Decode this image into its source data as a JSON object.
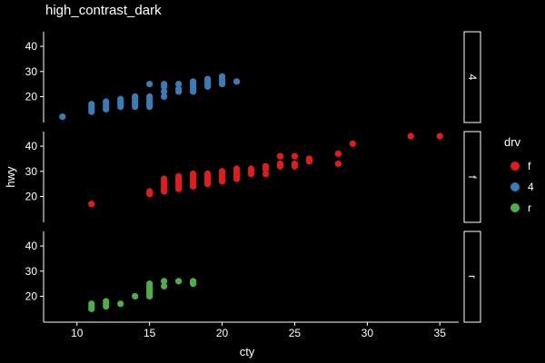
{
  "colors": {
    "background": "#000000",
    "foreground": "#ffffff",
    "f": "#e41a1c",
    "4": "#377eb8",
    "r": "#4daf4a"
  },
  "chart_data": {
    "type": "scatter",
    "title": "high_contrast_dark",
    "xlabel": "cty",
    "ylabel": "hwy",
    "xlim": [
      7.7,
      36.3
    ],
    "ylim": [
      9.7,
      45.8
    ],
    "x_ticks": [
      10,
      15,
      20,
      25,
      30,
      35
    ],
    "y_ticks": [
      20,
      30,
      40
    ],
    "grid": false,
    "facet_by": "drv",
    "legend": {
      "title": "drv",
      "placement": "right",
      "entries": [
        "f",
        "4",
        "r"
      ]
    },
    "series": [
      {
        "name": "4",
        "facet": "4",
        "points": [
          [
            9,
            12
          ],
          [
            11,
            14
          ],
          [
            11,
            15
          ],
          [
            11,
            16
          ],
          [
            11,
            17
          ],
          [
            12,
            15
          ],
          [
            12,
            16
          ],
          [
            12,
            17
          ],
          [
            12,
            18
          ],
          [
            13,
            16
          ],
          [
            13,
            17
          ],
          [
            13,
            18
          ],
          [
            13,
            19
          ],
          [
            14,
            16
          ],
          [
            14,
            17
          ],
          [
            14,
            18
          ],
          [
            14,
            19
          ],
          [
            14,
            20
          ],
          [
            15,
            16
          ],
          [
            15,
            17
          ],
          [
            15,
            18
          ],
          [
            15,
            19
          ],
          [
            15,
            20
          ],
          [
            15,
            25
          ],
          [
            16,
            20
          ],
          [
            16,
            22
          ],
          [
            16,
            24
          ],
          [
            16,
            25
          ],
          [
            17,
            22
          ],
          [
            17,
            23
          ],
          [
            17,
            25
          ],
          [
            18,
            22
          ],
          [
            18,
            23
          ],
          [
            18,
            24
          ],
          [
            18,
            25
          ],
          [
            18,
            26
          ],
          [
            19,
            24
          ],
          [
            19,
            25
          ],
          [
            19,
            26
          ],
          [
            19,
            27
          ],
          [
            20,
            25
          ],
          [
            20,
            26
          ],
          [
            20,
            27
          ],
          [
            20,
            28
          ],
          [
            21,
            26
          ]
        ]
      },
      {
        "name": "f",
        "facet": "f",
        "points": [
          [
            11,
            17
          ],
          [
            15,
            21
          ],
          [
            15,
            22
          ],
          [
            16,
            22
          ],
          [
            16,
            23
          ],
          [
            16,
            24
          ],
          [
            16,
            25
          ],
          [
            16,
            26
          ],
          [
            16,
            27
          ],
          [
            17,
            23
          ],
          [
            17,
            24
          ],
          [
            17,
            25
          ],
          [
            17,
            26
          ],
          [
            17,
            27
          ],
          [
            17,
            28
          ],
          [
            18,
            24
          ],
          [
            18,
            25
          ],
          [
            18,
            26
          ],
          [
            18,
            27
          ],
          [
            18,
            28
          ],
          [
            18,
            29
          ],
          [
            19,
            25
          ],
          [
            19,
            26
          ],
          [
            19,
            27
          ],
          [
            19,
            28
          ],
          [
            19,
            29
          ],
          [
            20,
            26
          ],
          [
            20,
            27
          ],
          [
            20,
            28
          ],
          [
            20,
            29
          ],
          [
            20,
            30
          ],
          [
            21,
            27
          ],
          [
            21,
            28
          ],
          [
            21,
            29
          ],
          [
            21,
            30
          ],
          [
            21,
            31
          ],
          [
            22,
            29
          ],
          [
            22,
            30
          ],
          [
            22,
            31
          ],
          [
            23,
            29
          ],
          [
            23,
            31
          ],
          [
            23,
            32
          ],
          [
            24,
            32
          ],
          [
            24,
            33
          ],
          [
            24,
            36
          ],
          [
            25,
            32
          ],
          [
            25,
            33
          ],
          [
            25,
            36
          ],
          [
            26,
            34
          ],
          [
            26,
            35
          ],
          [
            28,
            33
          ],
          [
            28,
            37
          ],
          [
            29,
            41
          ],
          [
            33,
            44
          ],
          [
            35,
            44
          ]
        ]
      },
      {
        "name": "r",
        "facet": "r",
        "points": [
          [
            11,
            15
          ],
          [
            11,
            16
          ],
          [
            11,
            17
          ],
          [
            12,
            16
          ],
          [
            12,
            17
          ],
          [
            12,
            18
          ],
          [
            13,
            17
          ],
          [
            14,
            20
          ],
          [
            15,
            20
          ],
          [
            15,
            21
          ],
          [
            15,
            22
          ],
          [
            15,
            23
          ],
          [
            15,
            24
          ],
          [
            15,
            25
          ],
          [
            16,
            24
          ],
          [
            16,
            26
          ],
          [
            17,
            26
          ],
          [
            18,
            25
          ],
          [
            18,
            26
          ]
        ]
      }
    ]
  }
}
